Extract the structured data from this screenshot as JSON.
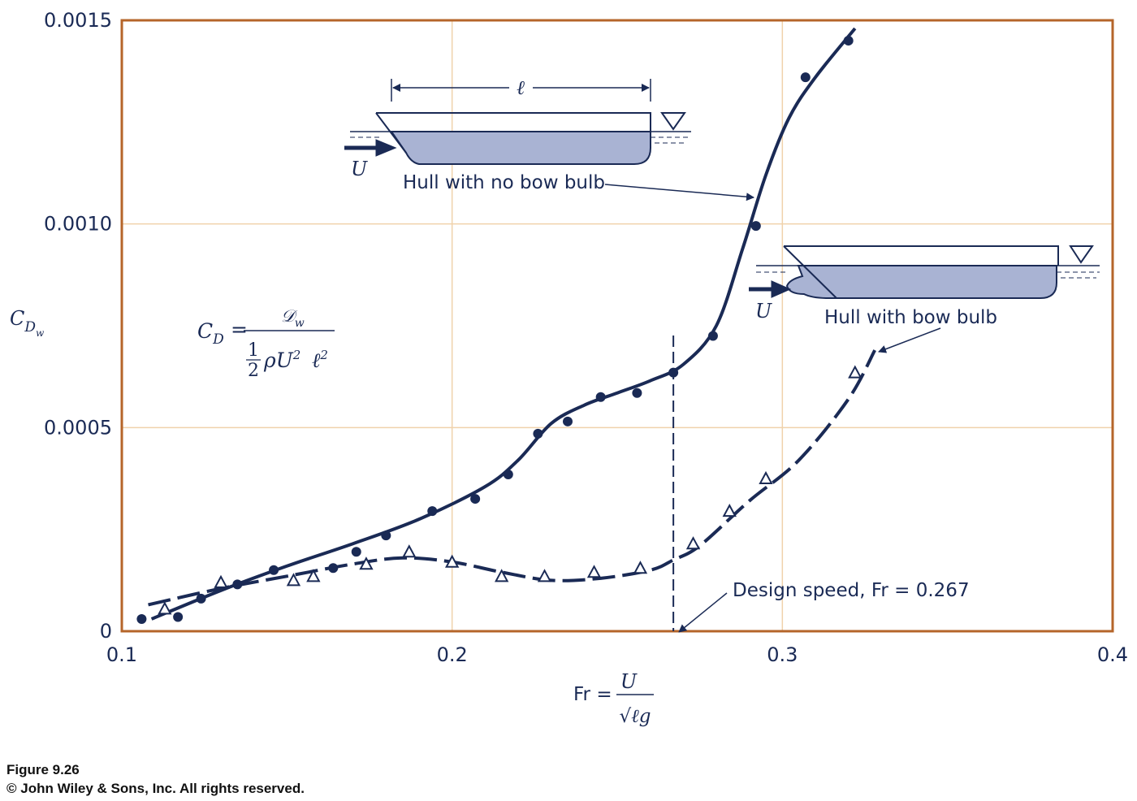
{
  "chart_data": {
    "type": "line",
    "x": [
      0.1,
      0.4
    ],
    "xlim": [
      0.1,
      0.4
    ],
    "ylim": [
      0,
      0.0015
    ],
    "x_ticks": [
      "0.1",
      "0.2",
      "0.3",
      "0.4"
    ],
    "y_ticks": [
      "0",
      "0.0005",
      "0.0010",
      "0.0015"
    ],
    "x_tick_values": [
      0.1,
      0.2,
      0.3,
      0.4
    ],
    "y_tick_values": [
      0,
      0.0005,
      0.001,
      0.0015
    ],
    "grid": true,
    "ylabel": "C_Dw",
    "xlabel": "Fr = U/√ℓg",
    "series": [
      {
        "name": "Hull with no bow bulb",
        "marker": "filled-circle",
        "line": "solid",
        "points": [
          [
            0.106,
            3e-05
          ],
          [
            0.117,
            3.5e-05
          ],
          [
            0.124,
            8e-05
          ],
          [
            0.135,
            0.000115
          ],
          [
            0.146,
            0.00015
          ],
          [
            0.164,
            0.000155
          ],
          [
            0.171,
            0.000195
          ],
          [
            0.18,
            0.000235
          ],
          [
            0.194,
            0.000295
          ],
          [
            0.207,
            0.000325
          ],
          [
            0.217,
            0.000385
          ],
          [
            0.226,
            0.000485
          ],
          [
            0.235,
            0.000515
          ],
          [
            0.245,
            0.000575
          ],
          [
            0.256,
            0.000585
          ],
          [
            0.267,
            0.000635
          ],
          [
            0.279,
            0.000725
          ],
          [
            0.292,
            0.000995
          ],
          [
            0.307,
            0.00136
          ],
          [
            0.32,
            0.00145
          ]
        ],
        "curve": [
          [
            0.109,
            3e-05
          ],
          [
            0.13,
            0.0001
          ],
          [
            0.15,
            0.00016
          ],
          [
            0.17,
            0.000215
          ],
          [
            0.19,
            0.000275
          ],
          [
            0.21,
            0.000355
          ],
          [
            0.22,
            0.00042
          ],
          [
            0.23,
            0.00051
          ],
          [
            0.24,
            0.000555
          ],
          [
            0.25,
            0.000585
          ],
          [
            0.26,
            0.000615
          ],
          [
            0.27,
            0.000655
          ],
          [
            0.28,
            0.00075
          ],
          [
            0.288,
            0.00094
          ],
          [
            0.295,
            0.00112
          ],
          [
            0.302,
            0.00126
          ],
          [
            0.31,
            0.00136
          ],
          [
            0.322,
            0.00148
          ]
        ]
      },
      {
        "name": "Hull with bow bulb",
        "marker": "open-triangle",
        "line": "dashed",
        "points": [
          [
            0.113,
            5.5e-05
          ],
          [
            0.13,
            0.00012
          ],
          [
            0.152,
            0.000125
          ],
          [
            0.158,
            0.000135
          ],
          [
            0.174,
            0.000165
          ],
          [
            0.187,
            0.000195
          ],
          [
            0.2,
            0.00017
          ],
          [
            0.215,
            0.000135
          ],
          [
            0.228,
            0.000135
          ],
          [
            0.243,
            0.000145
          ],
          [
            0.257,
            0.000155
          ],
          [
            0.273,
            0.000215
          ],
          [
            0.284,
            0.000295
          ],
          [
            0.295,
            0.000375
          ],
          [
            0.322,
            0.000635
          ]
        ],
        "curve": [
          [
            0.108,
            6.5e-05
          ],
          [
            0.13,
            0.000105
          ],
          [
            0.15,
            0.000135
          ],
          [
            0.17,
            0.000165
          ],
          [
            0.185,
            0.00018
          ],
          [
            0.2,
            0.00017
          ],
          [
            0.215,
            0.000145
          ],
          [
            0.23,
            0.000125
          ],
          [
            0.245,
            0.00013
          ],
          [
            0.26,
            0.00015
          ],
          [
            0.267,
            0.000175
          ],
          [
            0.275,
            0.00021
          ],
          [
            0.29,
            0.00032
          ],
          [
            0.305,
            0.00042
          ],
          [
            0.32,
            0.00057
          ],
          [
            0.328,
            0.00069
          ]
        ]
      }
    ],
    "design_speed": 0.267,
    "annotations": {
      "no_bulb": "Hull with no bow bulb",
      "bulb": "Hull with bow bulb",
      "design": "Design speed, Fr = 0.267",
      "length_symbol": "ℓ",
      "velocity_symbol": "U"
    }
  },
  "formula": {
    "lhs": "C",
    "lhs_sub": "D",
    "eq": "=",
    "numer": "𝒟",
    "numer_sub": "w",
    "half_num": "1",
    "half_den": "2",
    "rho_u": "ρU",
    "exp2": "2",
    "ell": "ℓ",
    "ell_exp": "2"
  },
  "axis_labels": {
    "y_main": "C",
    "y_sub": "D",
    "y_subsub": "w",
    "x_prefix": "Fr =",
    "x_num": "U",
    "x_den": "√ℓg"
  },
  "colors": {
    "frame": "#b5652a",
    "grid": "#f0d2ab",
    "ink": "#1a2a55",
    "hull_fill": "#a9b3d3"
  },
  "caption": {
    "figure": "Figure 9.26",
    "copyright": "© John Wiley & Sons, Inc. All rights reserved."
  }
}
